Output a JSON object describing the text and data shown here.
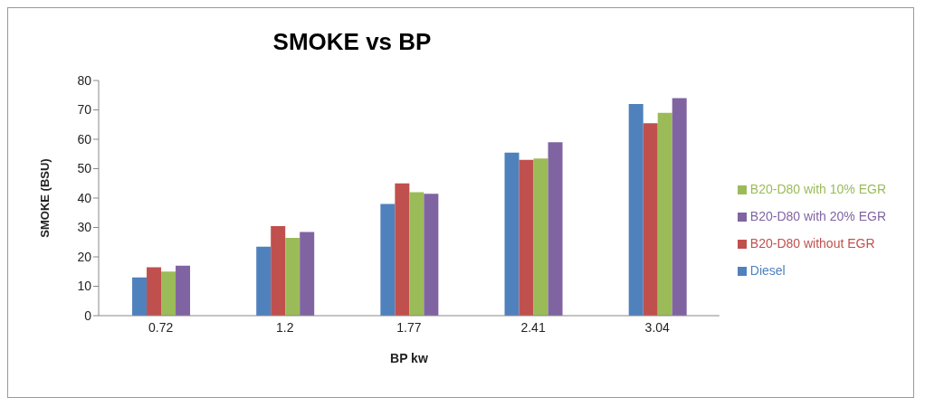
{
  "chart_data": {
    "type": "bar",
    "title": "SMOKE vs BP",
    "xlabel": "BP kw",
    "ylabel": "SMOKE (BSU)",
    "categories": [
      "0.72",
      "1.2",
      "1.77",
      "2.41",
      "3.04"
    ],
    "series": [
      {
        "name": "Diesel",
        "color": "#4f81bd",
        "values": [
          13,
          23.5,
          38,
          55.5,
          72
        ]
      },
      {
        "name": "B20-D80 without EGR",
        "color": "#c0504d",
        "values": [
          16.5,
          30.5,
          45,
          53,
          65.5
        ]
      },
      {
        "name": "B20-D80 with 10% EGR",
        "color": "#9bbb59",
        "values": [
          15,
          26.5,
          42,
          53.5,
          69
        ]
      },
      {
        "name": "B20-D80 with 20% EGR",
        "color": "#8064a2",
        "values": [
          17,
          28.5,
          41.5,
          59,
          74
        ]
      }
    ],
    "ylim": [
      0,
      80
    ],
    "yticks": [
      0,
      10,
      20,
      30,
      40,
      50,
      60,
      70,
      80
    ],
    "grid": false,
    "legend": "right"
  }
}
